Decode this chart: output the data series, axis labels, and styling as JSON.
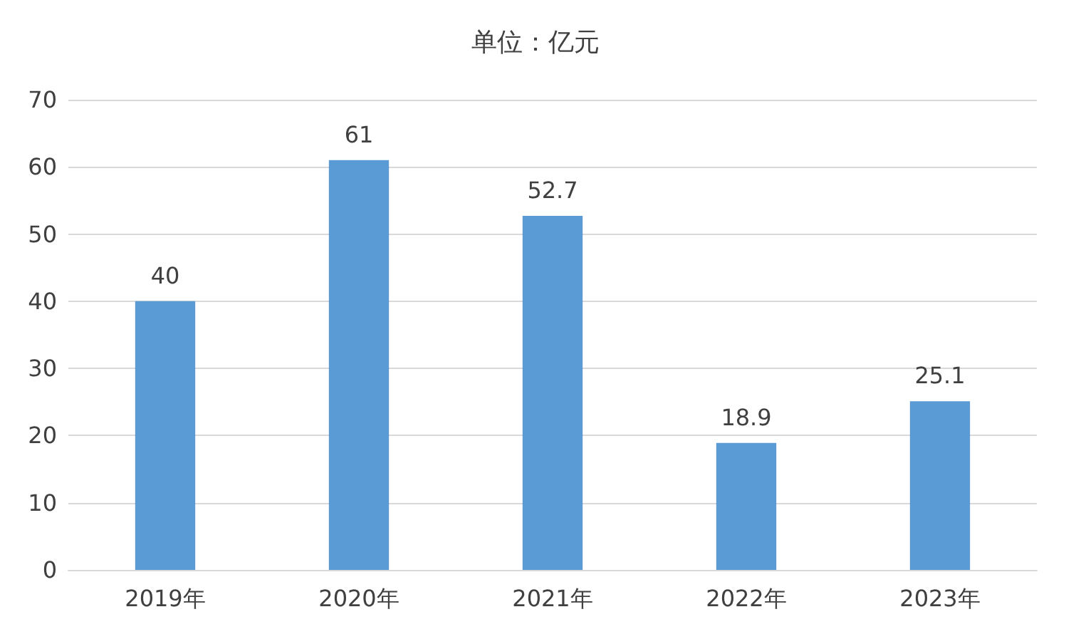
{
  "chart_data": {
    "type": "bar",
    "title": "单位：亿元",
    "categories": [
      "2019年",
      "2020年",
      "2021年",
      "2022年",
      "2023年"
    ],
    "values": [
      40,
      61,
      52.7,
      18.9,
      25.1
    ],
    "color": "#5b9bd5",
    "ylim": [
      0,
      70
    ],
    "yticks": [
      0,
      10,
      20,
      30,
      40,
      50,
      60,
      70
    ],
    "grid": "y",
    "data_labels": true
  }
}
